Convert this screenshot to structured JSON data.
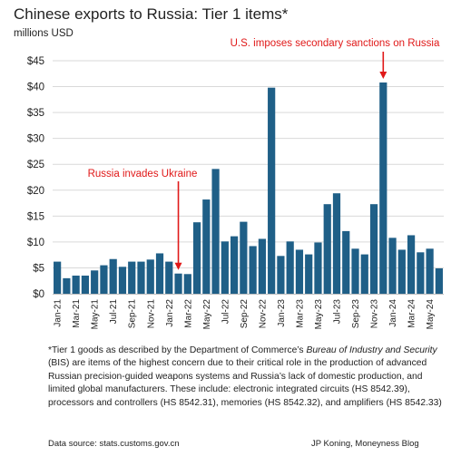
{
  "chart_data": {
    "type": "bar",
    "title": "Chinese exports to Russia: Tier 1 items*",
    "subtitle": "millions USD",
    "xlabel": "",
    "ylabel": "",
    "ylim": [
      0,
      45
    ],
    "yticks": [
      "$0",
      "$5",
      "$10",
      "$15",
      "$20",
      "$25",
      "$30",
      "$35",
      "$40",
      "$45"
    ],
    "grid": true,
    "color": "#1f5f87",
    "categories": [
      "Jan-21",
      "Feb-21",
      "Mar-21",
      "Apr-21",
      "May-21",
      "Jun-21",
      "Jul-21",
      "Aug-21",
      "Sep-21",
      "Oct-21",
      "Nov-21",
      "Dec-21",
      "Jan-22",
      "Feb-22",
      "Mar-22",
      "Apr-22",
      "May-22",
      "Jun-22",
      "Jul-22",
      "Aug-22",
      "Sep-22",
      "Oct-22",
      "Nov-22",
      "Dec-22",
      "Jan-23",
      "Feb-23",
      "Mar-23",
      "Apr-23",
      "May-23",
      "Jun-23",
      "Jul-23",
      "Aug-23",
      "Sep-23",
      "Oct-23",
      "Nov-23",
      "Dec-23",
      "Jan-24",
      "Feb-24",
      "Mar-24",
      "Apr-24",
      "May-24",
      "Jun-24"
    ],
    "tick_labels": [
      "Jan-21",
      "Mar-21",
      "May-21",
      "Jul-21",
      "Sep-21",
      "Nov-21",
      "Jan-22",
      "Mar-22",
      "May-22",
      "Jul-22",
      "Sep-22",
      "Nov-22",
      "Jan-23",
      "Mar-23",
      "May-23",
      "Jul-23",
      "Sep-23",
      "Nov-23",
      "Jan-24",
      "Mar-24",
      "May-24"
    ],
    "values": [
      6.2,
      3.0,
      3.5,
      3.5,
      4.5,
      5.5,
      6.7,
      5.2,
      6.2,
      6.2,
      6.6,
      7.8,
      6.2,
      3.9,
      3.8,
      13.8,
      18.2,
      24.1,
      10.1,
      11.1,
      13.9,
      9.2,
      10.6,
      39.8,
      7.3,
      10.1,
      8.5,
      7.6,
      9.9,
      17.3,
      19.4,
      12.1,
      8.7,
      7.6,
      17.3,
      40.8,
      10.8,
      8.5,
      11.3,
      8.0,
      8.7,
      4.9
    ],
    "annotations": [
      {
        "text": "Russia invades Ukraine",
        "category": "Feb-22"
      },
      {
        "text": "U.S. imposes secondary sanctions on Russia",
        "category": "Dec-23"
      }
    ]
  },
  "footnote": {
    "part1": "*Tier 1 goods as described by the Department of Commerce’s ",
    "agency": "Bureau of Industry and Security",
    "part2": " (BIS) are items of the highest concern due to their critical role in the production of advanced Russian precision-guided weapons systems and Russia’s lack of domestic production, and limited global manufacturers. These include: electronic integrated circuits (HS 8542.39), processors and controllers (HS 8542.31), memories (HS 8542.32), and amplifiers (HS 8542.33)"
  },
  "source": "Data source: stats.customs.gov.cn",
  "credit": "JP Koning, Moneyness Blog"
}
